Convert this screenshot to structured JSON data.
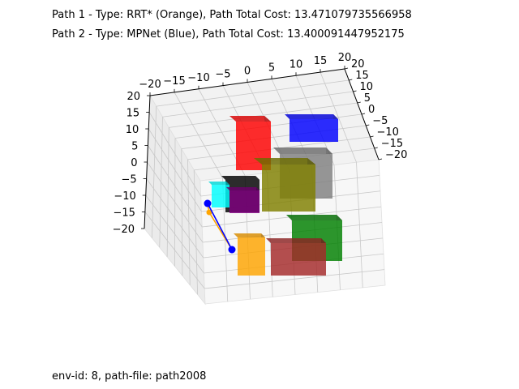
{
  "chart_data": {
    "type": "3d-scatter-environment",
    "titles": [
      "Path 1 - Type: RRT* (Orange), Path Total Cost: 13.471079735566958",
      "Path 2 - Type: MPNet (Blue), Path Total Cost: 13.400091447952175"
    ],
    "footer": "env-id: 8, path-file: path2008",
    "x_ticks": [
      "−20",
      "−15",
      "−10",
      "−5",
      "0",
      "5",
      "10",
      "15",
      "20"
    ],
    "y_ticks": [
      "20",
      "15",
      "10",
      "5",
      "0",
      "−5",
      "−10",
      "−15",
      "−20"
    ],
    "z_ticks": [
      "20",
      "15",
      "10",
      "5",
      "0",
      "−5",
      "−10",
      "−15",
      "−20"
    ],
    "xlim": [
      -20,
      20
    ],
    "ylim": [
      -20,
      20
    ],
    "zlim": [
      -20,
      20
    ],
    "grid": true,
    "obstacles": [
      {
        "color": "#ff0000"
      },
      {
        "color": "#0000ff"
      },
      {
        "color": "#808080"
      },
      {
        "color": "#808000"
      },
      {
        "color": "#000000"
      },
      {
        "color": "#00ffff"
      },
      {
        "color": "#800080"
      },
      {
        "color": "#008000"
      },
      {
        "color": "#a52a2a"
      },
      {
        "color": "#ffa500"
      }
    ],
    "paths": [
      {
        "color": "#ffa500"
      },
      {
        "color": "#0000ff"
      }
    ]
  }
}
